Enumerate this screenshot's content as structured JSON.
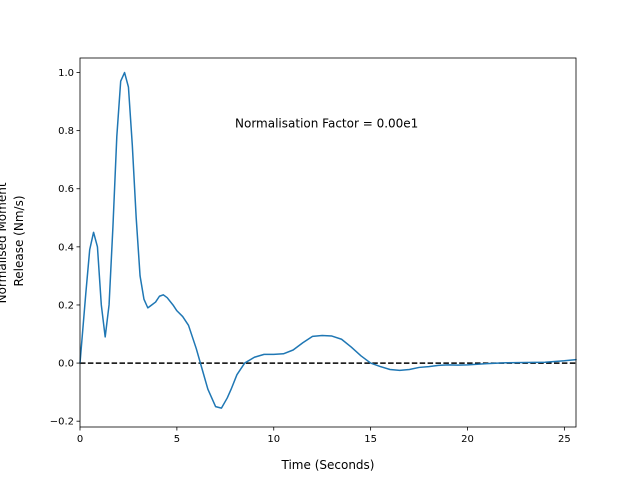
{
  "chart_data": {
    "type": "line",
    "title": "",
    "xlabel": "Time (Seconds)",
    "ylabel_lines": [
      "Normalised Moment",
      "Release (Nm/s)"
    ],
    "xlim": [
      0,
      25.6
    ],
    "ylim": [
      -0.22,
      1.05
    ],
    "xticks": [
      0,
      5,
      10,
      15,
      20,
      25
    ],
    "yticks": [
      -0.2,
      0.0,
      0.2,
      0.4,
      0.6,
      0.8,
      1.0
    ],
    "ytick_labels": [
      "−0.2",
      "0.0",
      "0.2",
      "0.4",
      "0.6",
      "0.8",
      "1.0"
    ],
    "grid": false,
    "annotation": {
      "text": "Normalisation Factor = 0.00e1",
      "x": 8.0,
      "y": 0.81
    },
    "reference_line": {
      "y": 0,
      "style": "dashed",
      "color": "#000000"
    },
    "series": [
      {
        "color": "#1f77b4",
        "x": [
          0,
          0.3,
          0.5,
          0.7,
          0.9,
          1.1,
          1.3,
          1.5,
          1.7,
          1.9,
          2.1,
          2.3,
          2.5,
          2.7,
          2.9,
          3.1,
          3.3,
          3.5,
          3.7,
          3.9,
          4.1,
          4.3,
          4.5,
          4.8,
          5.0,
          5.3,
          5.6,
          6.0,
          6.3,
          6.6,
          7.0,
          7.3,
          7.6,
          7.8,
          8.1,
          8.5,
          9.0,
          9.5,
          10.0,
          10.5,
          11.0,
          11.5,
          12.0,
          12.5,
          13.0,
          13.5,
          14.0,
          14.5,
          15.0,
          15.5,
          16.0,
          16.5,
          17.0,
          17.5,
          18.0,
          18.5,
          19.0,
          19.5,
          20.0,
          21.0,
          22.0,
          23.0,
          24.0,
          25.0,
          25.6
        ],
        "y": [
          0.0,
          0.24,
          0.39,
          0.45,
          0.4,
          0.2,
          0.09,
          0.2,
          0.47,
          0.78,
          0.97,
          1.0,
          0.95,
          0.75,
          0.5,
          0.3,
          0.22,
          0.19,
          0.2,
          0.21,
          0.23,
          0.235,
          0.225,
          0.2,
          0.18,
          0.16,
          0.13,
          0.05,
          -0.02,
          -0.09,
          -0.15,
          -0.155,
          -0.12,
          -0.09,
          -0.04,
          0.0,
          0.02,
          0.03,
          0.03,
          0.032,
          0.045,
          0.07,
          0.092,
          0.095,
          0.093,
          0.082,
          0.055,
          0.025,
          0.0,
          -0.012,
          -0.022,
          -0.025,
          -0.022,
          -0.015,
          -0.012,
          -0.008,
          -0.006,
          -0.007,
          -0.006,
          -0.002,
          0.001,
          0.002,
          0.003,
          0.008,
          0.012
        ]
      }
    ]
  }
}
